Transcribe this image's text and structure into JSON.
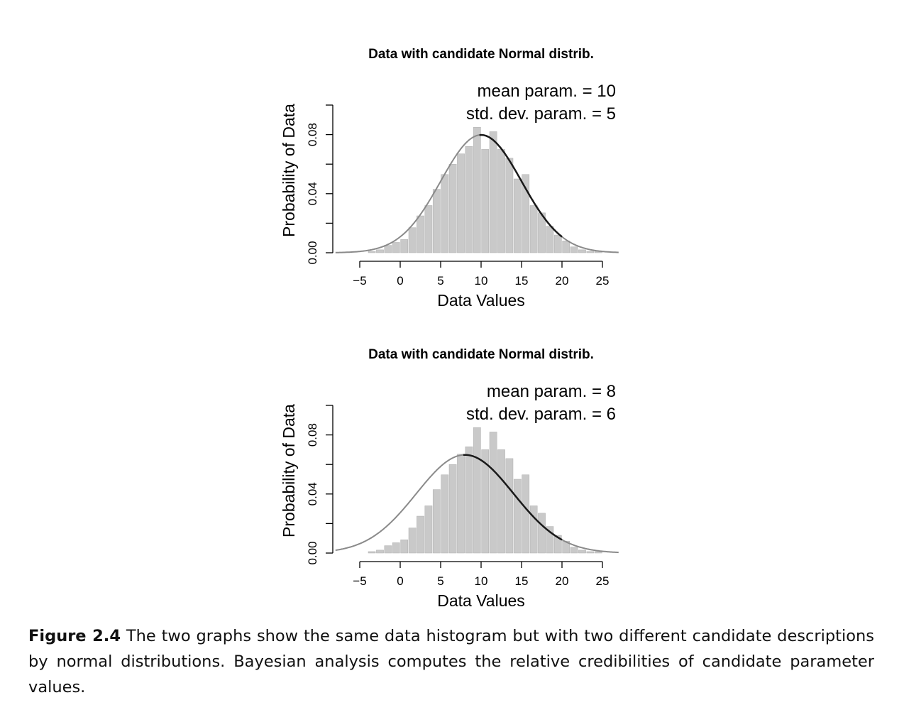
{
  "caption": {
    "label": "Figure 2.4",
    "text": "The two graphs show the same data histogram but with two different candidate descriptions by normal distributions. Bayesian analysis computes the relative credibilities of candidate parameter values."
  },
  "chart_data": [
    {
      "type": "bar",
      "title": "Data with candidate Normal distrib.",
      "xlabel": "Data Values",
      "ylabel": "Probability of Data",
      "xticks": [
        "−5",
        "0",
        "5",
        "10",
        "15",
        "20",
        "25"
      ],
      "yticks": [
        "0.00",
        "0.04",
        "0.08"
      ],
      "xlim": [
        -5,
        25
      ],
      "ylim": [
        0,
        0.1
      ],
      "annotations": [
        "mean param. = 10",
        "std. dev. param. = 5"
      ],
      "histogram": {
        "bin_width": 1,
        "bin_starts": [
          -4,
          -3,
          -2,
          -1,
          0,
          1,
          2,
          3,
          4,
          5,
          6,
          7,
          8,
          9,
          10,
          11,
          12,
          13,
          14,
          15,
          16,
          17,
          18,
          19,
          20,
          21,
          22,
          23,
          24
        ],
        "values": [
          0.001,
          0.002,
          0.005,
          0.007,
          0.009,
          0.017,
          0.025,
          0.032,
          0.043,
          0.053,
          0.06,
          0.067,
          0.072,
          0.085,
          0.07,
          0.082,
          0.07,
          0.064,
          0.05,
          0.053,
          0.032,
          0.027,
          0.018,
          0.012,
          0.008,
          0.004,
          0.002,
          0.001,
          0.001
        ]
      },
      "curve": {
        "mean": 10,
        "sd": 5,
        "x_range": [
          -8,
          27
        ]
      }
    },
    {
      "type": "bar",
      "title": "Data with candidate Normal distrib.",
      "xlabel": "Data Values",
      "ylabel": "Probability of Data",
      "xticks": [
        "−5",
        "0",
        "5",
        "10",
        "15",
        "20",
        "25"
      ],
      "yticks": [
        "0.00",
        "0.04",
        "0.08"
      ],
      "xlim": [
        -5,
        25
      ],
      "ylim": [
        0,
        0.1
      ],
      "annotations": [
        "mean param. = 8",
        "std. dev. param. = 6"
      ],
      "histogram": {
        "bin_width": 1,
        "bin_starts": [
          -4,
          -3,
          -2,
          -1,
          0,
          1,
          2,
          3,
          4,
          5,
          6,
          7,
          8,
          9,
          10,
          11,
          12,
          13,
          14,
          15,
          16,
          17,
          18,
          19,
          20,
          21,
          22,
          23,
          24
        ],
        "values": [
          0.001,
          0.002,
          0.005,
          0.007,
          0.009,
          0.017,
          0.025,
          0.032,
          0.043,
          0.053,
          0.06,
          0.067,
          0.072,
          0.085,
          0.07,
          0.082,
          0.07,
          0.064,
          0.05,
          0.053,
          0.032,
          0.027,
          0.018,
          0.012,
          0.008,
          0.004,
          0.002,
          0.001,
          0.001
        ]
      },
      "curve": {
        "mean": 8,
        "sd": 6,
        "x_range": [
          -8,
          27
        ]
      }
    }
  ]
}
